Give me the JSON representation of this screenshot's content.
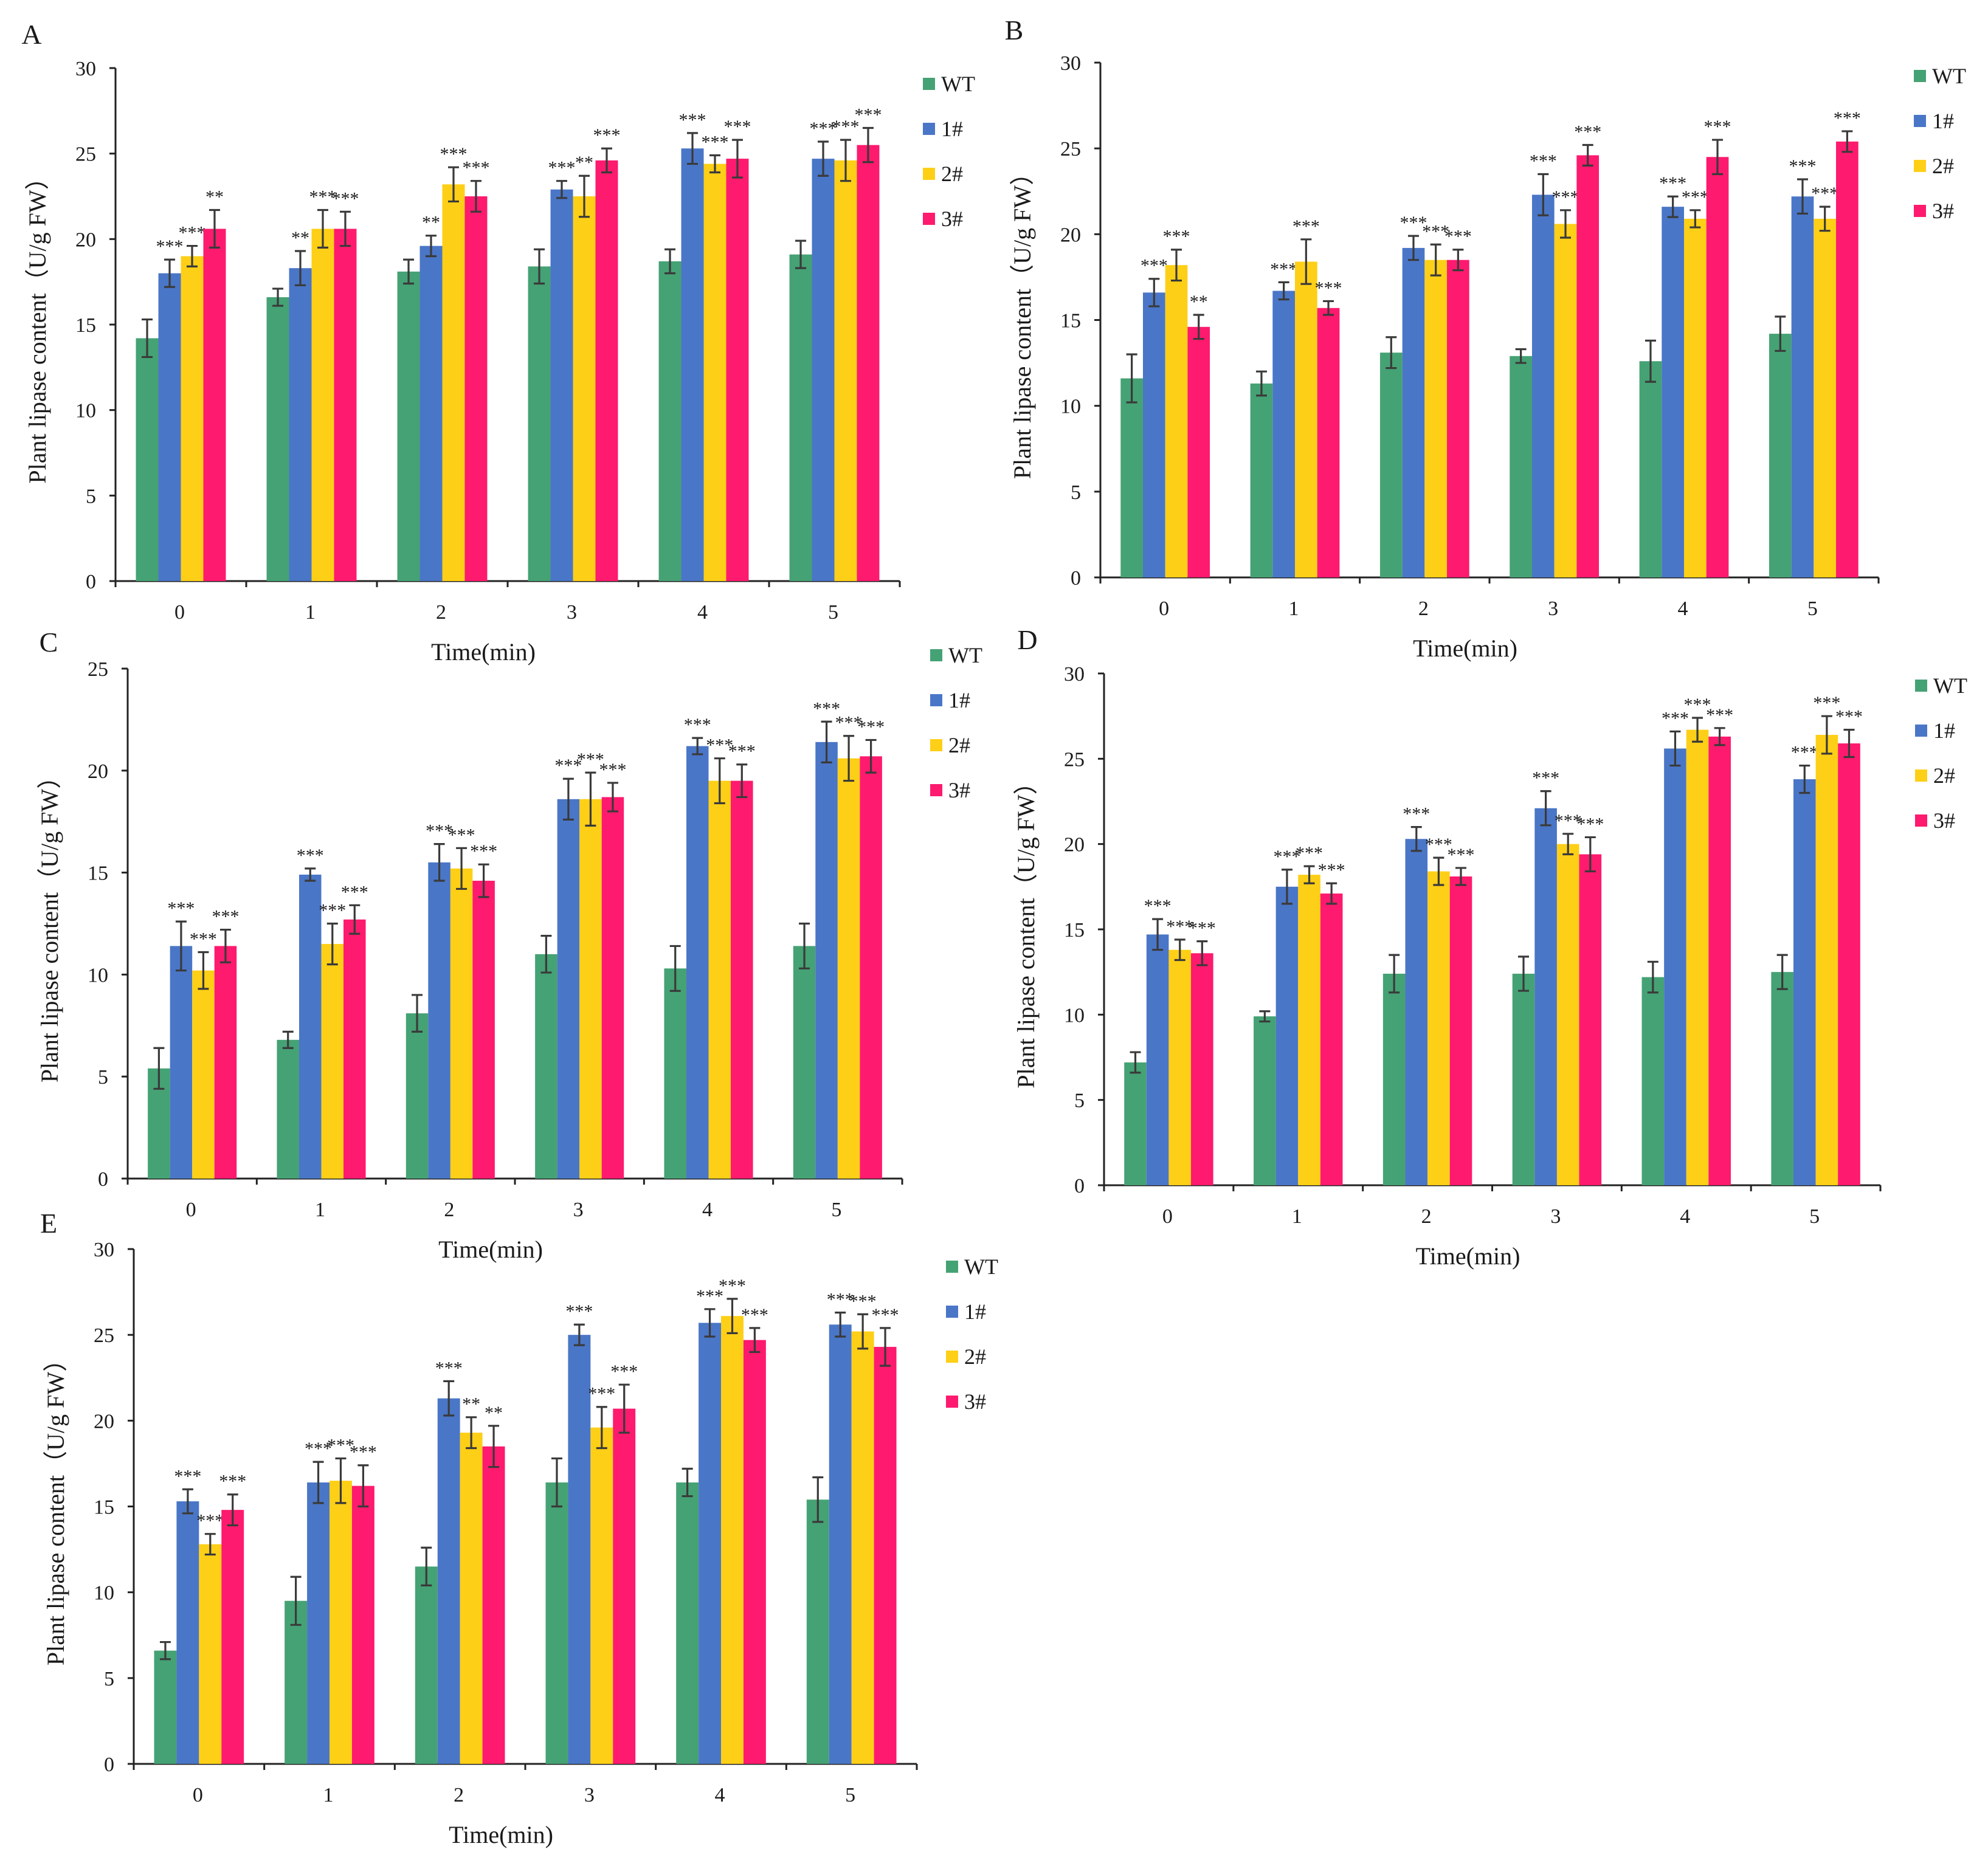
{
  "colors": {
    "WT": "#45a274",
    "1#": "#4a76c7",
    "2#": "#fecf17",
    "3#": "#fe1a6e"
  },
  "chart_data": [
    {
      "panel": "A",
      "type": "bar",
      "xlabel": "Time(min)",
      "ylabel": "Plant lipase content（U/g FW）",
      "categories": [
        "0",
        "1",
        "2",
        "3",
        "4",
        "5"
      ],
      "ylim": [
        0,
        30
      ],
      "yticks": [
        0,
        5,
        10,
        15,
        20,
        25,
        30
      ],
      "legend": [
        "WT",
        "1#",
        "2#",
        "3#"
      ],
      "legend_position": "right",
      "series": [
        {
          "name": "WT",
          "values": [
            14.2,
            16.6,
            18.1,
            18.4,
            18.7,
            19.1
          ],
          "errors": [
            1.1,
            0.5,
            0.7,
            1.0,
            0.7,
            0.8
          ],
          "sig": [
            "",
            "",
            "",
            "",
            "",
            ""
          ]
        },
        {
          "name": "1#",
          "values": [
            18.0,
            18.3,
            19.6,
            22.9,
            25.3,
            24.7
          ],
          "errors": [
            0.8,
            1.0,
            0.6,
            0.5,
            0.9,
            1.0
          ],
          "sig": [
            "***",
            "**",
            "**",
            "***",
            "***",
            "***"
          ]
        },
        {
          "name": "2#",
          "values": [
            19.0,
            20.6,
            23.2,
            22.5,
            24.4,
            24.6
          ],
          "errors": [
            0.6,
            1.1,
            1.0,
            1.2,
            0.5,
            1.2
          ],
          "sig": [
            "***",
            "***",
            "***",
            "**",
            "***",
            "***"
          ]
        },
        {
          "name": "3#",
          "values": [
            20.6,
            20.6,
            22.5,
            24.6,
            24.7,
            25.5
          ],
          "errors": [
            1.1,
            1.0,
            0.9,
            0.7,
            1.1,
            1.0
          ],
          "sig": [
            "**",
            "***",
            "***",
            "***",
            "***",
            "***"
          ]
        }
      ]
    },
    {
      "panel": "B",
      "type": "bar",
      "xlabel": "Time(min)",
      "ylabel": "Plant lipase content（U/g FW）",
      "categories": [
        "0",
        "1",
        "2",
        "3",
        "4",
        "5"
      ],
      "ylim": [
        0,
        30
      ],
      "yticks": [
        0,
        5,
        10,
        15,
        20,
        25,
        30
      ],
      "legend": [
        "WT",
        "1#",
        "2#",
        "3#"
      ],
      "legend_position": "right",
      "series": [
        {
          "name": "WT",
          "values": [
            11.6,
            11.3,
            13.1,
            12.9,
            12.6,
            14.2
          ],
          "errors": [
            1.4,
            0.7,
            0.9,
            0.4,
            1.2,
            1.0
          ],
          "sig": [
            "",
            "",
            "",
            "",
            "",
            ""
          ]
        },
        {
          "name": "1#",
          "values": [
            16.6,
            16.7,
            19.2,
            22.3,
            21.6,
            22.2
          ],
          "errors": [
            0.8,
            0.5,
            0.7,
            1.2,
            0.6,
            1.0
          ],
          "sig": [
            "***",
            "***",
            "***",
            "***",
            "***",
            "***"
          ]
        },
        {
          "name": "2#",
          "values": [
            18.2,
            18.4,
            18.5,
            20.6,
            20.9,
            20.9
          ],
          "errors": [
            0.9,
            1.3,
            0.9,
            0.8,
            0.5,
            0.7
          ],
          "sig": [
            "***",
            "***",
            "***",
            "***",
            "***",
            "***"
          ]
        },
        {
          "name": "3#",
          "values": [
            14.6,
            15.7,
            18.5,
            24.6,
            24.5,
            25.4
          ],
          "errors": [
            0.7,
            0.4,
            0.6,
            0.6,
            1.0,
            0.6
          ],
          "sig": [
            "**",
            "***",
            "***",
            "***",
            "***",
            "***"
          ]
        }
      ]
    },
    {
      "panel": "C",
      "type": "bar",
      "xlabel": "Time(min)",
      "ylabel": "Plant lipase content（U/g FW）",
      "categories": [
        "0",
        "1",
        "2",
        "3",
        "4",
        "5"
      ],
      "ylim": [
        0,
        25
      ],
      "yticks": [
        0,
        5,
        10,
        15,
        20,
        25
      ],
      "legend": [
        "WT",
        "1#",
        "2#",
        "3#"
      ],
      "legend_position": "right",
      "series": [
        {
          "name": "WT",
          "values": [
            5.4,
            6.8,
            8.1,
            11.0,
            10.3,
            11.4
          ],
          "errors": [
            1.0,
            0.4,
            0.9,
            0.9,
            1.1,
            1.1
          ],
          "sig": [
            "",
            "",
            "",
            "",
            "",
            ""
          ]
        },
        {
          "name": "1#",
          "values": [
            11.4,
            14.9,
            15.5,
            18.6,
            21.2,
            21.4
          ],
          "errors": [
            1.2,
            0.3,
            0.9,
            1.0,
            0.4,
            1.0
          ],
          "sig": [
            "***",
            "***",
            "***",
            "***",
            "***",
            "***"
          ]
        },
        {
          "name": "2#",
          "values": [
            10.2,
            11.5,
            15.2,
            18.6,
            19.5,
            20.6
          ],
          "errors": [
            0.9,
            1.0,
            1.0,
            1.3,
            1.1,
            1.1
          ],
          "sig": [
            "***",
            "***",
            "***",
            "***",
            "***",
            "***"
          ]
        },
        {
          "name": "3#",
          "values": [
            11.4,
            12.7,
            14.6,
            18.7,
            19.5,
            20.7
          ],
          "errors": [
            0.8,
            0.7,
            0.8,
            0.7,
            0.8,
            0.8
          ],
          "sig": [
            "***",
            "***",
            "***",
            "***",
            "***",
            "***"
          ]
        }
      ]
    },
    {
      "panel": "D",
      "type": "bar",
      "xlabel": "Time(min)",
      "ylabel": "Plant lipase content（U/g FW）",
      "categories": [
        "0",
        "1",
        "2",
        "3",
        "4",
        "5"
      ],
      "ylim": [
        0,
        30
      ],
      "yticks": [
        0,
        5,
        10,
        15,
        20,
        25,
        30
      ],
      "legend": [
        "WT",
        "1#",
        "2#",
        "3#"
      ],
      "legend_position": "right",
      "series": [
        {
          "name": "WT",
          "values": [
            7.2,
            9.9,
            12.4,
            12.4,
            12.2,
            12.5
          ],
          "errors": [
            0.6,
            0.3,
            1.1,
            1.0,
            0.9,
            1.0
          ],
          "sig": [
            "",
            "",
            "",
            "",
            "",
            ""
          ]
        },
        {
          "name": "1#",
          "values": [
            14.7,
            17.5,
            20.3,
            22.1,
            25.6,
            23.8
          ],
          "errors": [
            0.9,
            1.0,
            0.7,
            1.0,
            1.0,
            0.8
          ],
          "sig": [
            "***",
            "***",
            "***",
            "***",
            "***",
            "***"
          ]
        },
        {
          "name": "2#",
          "values": [
            13.8,
            18.2,
            18.4,
            20.0,
            26.7,
            26.4
          ],
          "errors": [
            0.6,
            0.5,
            0.8,
            0.6,
            0.7,
            1.1
          ],
          "sig": [
            "***",
            "***",
            "***",
            "***",
            "***",
            "***"
          ]
        },
        {
          "name": "3#",
          "values": [
            13.6,
            17.1,
            18.1,
            19.4,
            26.3,
            25.9
          ],
          "errors": [
            0.7,
            0.6,
            0.5,
            1.0,
            0.5,
            0.8
          ],
          "sig": [
            "***",
            "***",
            "***",
            "***",
            "***",
            "***"
          ]
        }
      ]
    },
    {
      "panel": "E",
      "type": "bar",
      "xlabel": "Time(min)",
      "ylabel": "Plant lipase content（U/g FW）",
      "categories": [
        "0",
        "1",
        "2",
        "3",
        "4",
        "5"
      ],
      "ylim": [
        0,
        30
      ],
      "yticks": [
        0,
        5,
        10,
        15,
        20,
        25,
        30
      ],
      "legend": [
        "WT",
        "1#",
        "2#",
        "3#"
      ],
      "legend_position": "right",
      "series": [
        {
          "name": "WT",
          "values": [
            6.6,
            9.5,
            11.5,
            16.4,
            16.4,
            15.4
          ],
          "errors": [
            0.5,
            1.4,
            1.1,
            1.4,
            0.8,
            1.3
          ],
          "sig": [
            "",
            "",
            "",
            "",
            "",
            ""
          ]
        },
        {
          "name": "1#",
          "values": [
            15.3,
            16.4,
            21.3,
            25.0,
            25.7,
            25.6
          ],
          "errors": [
            0.7,
            1.2,
            1.0,
            0.6,
            0.8,
            0.7
          ],
          "sig": [
            "***",
            "***",
            "***",
            "***",
            "***",
            "***"
          ]
        },
        {
          "name": "2#",
          "values": [
            12.8,
            16.5,
            19.3,
            19.6,
            26.1,
            25.2
          ],
          "errors": [
            0.6,
            1.3,
            0.9,
            1.2,
            1.0,
            1.0
          ],
          "sig": [
            "***",
            "***",
            "**",
            "***",
            "***",
            "***"
          ]
        },
        {
          "name": "3#",
          "values": [
            14.8,
            16.2,
            18.5,
            20.7,
            24.7,
            24.3
          ],
          "errors": [
            0.9,
            1.2,
            1.2,
            1.4,
            0.7,
            1.1
          ],
          "sig": [
            "***",
            "***",
            "**",
            "***",
            "***",
            "***"
          ]
        }
      ]
    }
  ]
}
